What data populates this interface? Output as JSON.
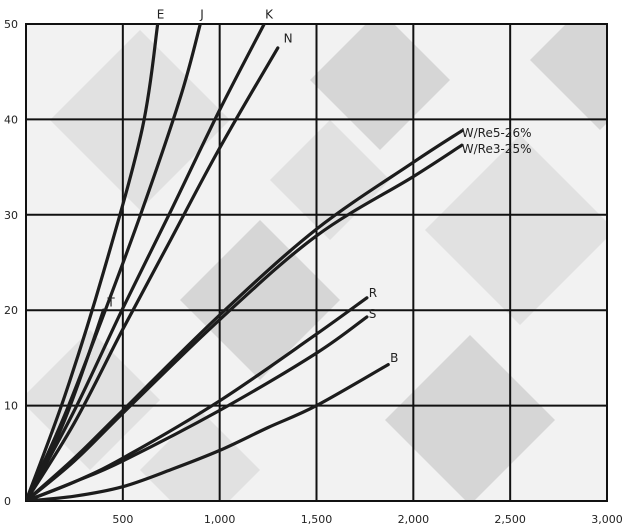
{
  "chart_data": {
    "type": "line",
    "title": "",
    "xlabel": "",
    "ylabel": "",
    "xlim": [
      0,
      3000
    ],
    "ylim": [
      0,
      50
    ],
    "grid": true,
    "x_ticks": [
      500,
      1000,
      1500,
      2000,
      2500,
      3000
    ],
    "x_tick_labels": [
      "500",
      "1,000",
      "1,500",
      "2,000",
      "2,500",
      "3,000"
    ],
    "y_ticks": [
      0,
      10,
      20,
      30,
      40,
      50
    ],
    "y_tick_labels": [
      "0",
      "10",
      "20",
      "30",
      "40",
      "50"
    ],
    "series": [
      {
        "name": "E",
        "x": [
          0,
          200,
          400,
          600,
          680
        ],
        "y": [
          0,
          11,
          24,
          39,
          50
        ]
      },
      {
        "name": "J",
        "x": [
          0,
          200,
          400,
          600,
          800,
          900
        ],
        "y": [
          0,
          9,
          19.5,
          30.5,
          42.5,
          50
        ]
      },
      {
        "name": "K",
        "x": [
          0,
          250,
          500,
          750,
          1000,
          1230
        ],
        "y": [
          0,
          9.5,
          20.2,
          30.5,
          41,
          50
        ]
      },
      {
        "name": "N",
        "x": [
          0,
          250,
          500,
          750,
          1000,
          1300
        ],
        "y": [
          0,
          8.2,
          18,
          27.5,
          37,
          47.5
        ]
      },
      {
        "name": "T",
        "x": [
          0,
          100,
          200,
          300,
          400
        ],
        "y": [
          0,
          4,
          8.5,
          14,
          20
        ]
      },
      {
        "name": "W/Re5-26%",
        "x": [
          0,
          250,
          500,
          1000,
          1500,
          2000,
          2250
        ],
        "y": [
          0,
          4.5,
          9.5,
          19.5,
          28.5,
          35.5,
          38.8
        ]
      },
      {
        "name": "W/Re3-25%",
        "x": [
          0,
          250,
          500,
          1000,
          1500,
          2000,
          2250
        ],
        "y": [
          0,
          4.2,
          9.2,
          19,
          27.8,
          34,
          37.3
        ]
      },
      {
        "name": "R",
        "x": [
          0,
          250,
          500,
          1000,
          1500,
          1760
        ],
        "y": [
          0,
          2,
          4.5,
          10.5,
          17.5,
          21.3
        ]
      },
      {
        "name": "S",
        "x": [
          0,
          250,
          500,
          1000,
          1500,
          1760
        ],
        "y": [
          0,
          2,
          4.2,
          9.5,
          15.5,
          19.3
        ]
      },
      {
        "name": "B",
        "x": [
          0,
          250,
          500,
          750,
          1000,
          1250,
          1500,
          1870
        ],
        "y": [
          0,
          0.5,
          1.5,
          3.3,
          5.3,
          7.7,
          10,
          14.3
        ]
      }
    ],
    "curve_labels": [
      {
        "text": "E",
        "x": 675,
        "y": 51
      },
      {
        "text": "J",
        "x": 900,
        "y": 51
      },
      {
        "text": "K",
        "x": 1235,
        "y": 51
      },
      {
        "text": "N",
        "x": 1330,
        "y": 48.5
      },
      {
        "text": "T",
        "x": 420,
        "y": 20.8
      },
      {
        "text": "W/Re5-26%",
        "x": 2250,
        "y": 38.6
      },
      {
        "text": "W/Re3-25%",
        "x": 2250,
        "y": 36.9
      },
      {
        "text": "R",
        "x": 1770,
        "y": 21.8
      },
      {
        "text": "S",
        "x": 1770,
        "y": 19.6
      },
      {
        "text": "B",
        "x": 1880,
        "y": 15
      }
    ],
    "colors": {
      "line": "#1c1c1c",
      "grid": "#111111",
      "background_tile_dark": "#bfbfbf",
      "background_tile_light": "#f2f2f2"
    }
  }
}
